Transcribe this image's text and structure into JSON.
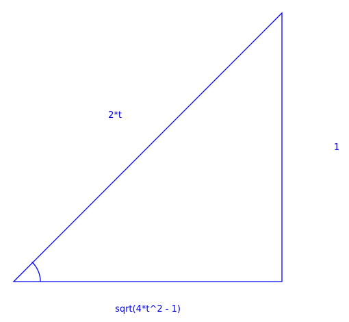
{
  "diagram": {
    "type": "right-triangle",
    "color": "#0000ee",
    "background": "#ffffff",
    "sides": {
      "hypotenuse": "2*t",
      "opposite": "1",
      "adjacent": "sqrt(4*t^2 - 1)"
    },
    "angle_marker": "arc at the bottom-left vertex",
    "right_angle_marker": false
  }
}
